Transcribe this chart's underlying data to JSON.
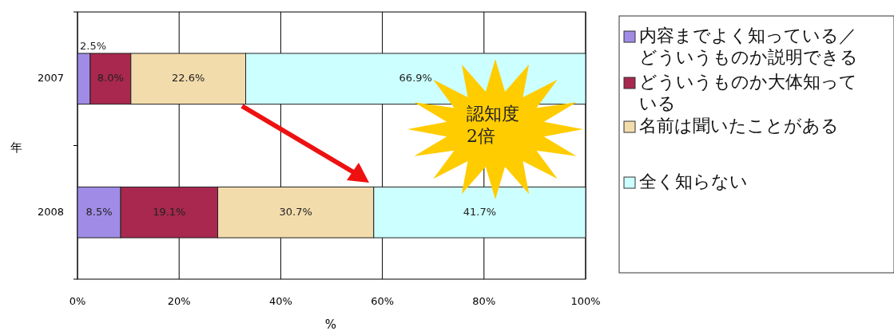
{
  "chart_data": {
    "type": "bar",
    "orientation": "horizontal",
    "stacked": true,
    "ylabel": "年",
    "xlabel": "%",
    "categories": [
      "2007",
      "2008"
    ],
    "series": [
      {
        "name": "内容までよく知っている／どういうものか説明できる",
        "color": "#a08ce6",
        "values": [
          2.5,
          8.5
        ],
        "value_labels": [
          "2.5%",
          "8.5%"
        ]
      },
      {
        "name": "どういうものか大体知っている",
        "color": "#a8284f",
        "values": [
          8.0,
          19.1
        ],
        "value_labels": [
          "8.0%",
          "19.1%"
        ]
      },
      {
        "name": "名前は聞いたことがある",
        "color": "#f3dcac",
        "values": [
          22.6,
          30.7
        ],
        "value_labels": [
          "22.6%",
          "30.7%"
        ]
      },
      {
        "name": "全く知らない",
        "color": "#ccffff",
        "values": [
          66.9,
          41.7
        ],
        "value_labels": [
          "66.9%",
          "41.7%"
        ]
      }
    ],
    "xlim": [
      0,
      100
    ],
    "xticks": [
      {
        "value": 0,
        "label": "0%"
      },
      {
        "value": 20,
        "label": "20%"
      },
      {
        "value": 40,
        "label": "40%"
      },
      {
        "value": 60,
        "label": "60%"
      },
      {
        "value": 80,
        "label": "80%"
      },
      {
        "value": 100,
        "label": "100%"
      }
    ],
    "grid": "x",
    "legend": "right",
    "annotations": [
      "認知度\n2倍"
    ]
  }
}
